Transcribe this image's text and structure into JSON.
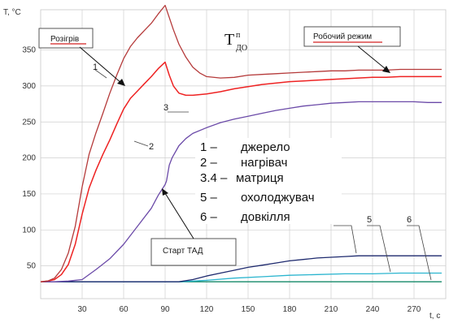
{
  "chart_data": {
    "type": "line",
    "xlabel": "t, с",
    "ylabel": "T, °С",
    "xlim": [
      0,
      300
    ],
    "ylim": [
      20,
      420
    ],
    "xticks": [
      "30",
      "60",
      "90",
      "120",
      "150",
      "180",
      "210",
      "240",
      "270"
    ],
    "yticks": [
      "50",
      "100",
      "150",
      "200",
      "250",
      "300",
      "350"
    ],
    "grid": true,
    "series": [
      {
        "name": "1",
        "color": "#b53a3a",
        "width": 1.3,
        "x": [
          0,
          5,
          10,
          15,
          20,
          25,
          30,
          35,
          40,
          45,
          50,
          55,
          60,
          65,
          70,
          75,
          80,
          85,
          90,
          93,
          96,
          100,
          105,
          110,
          115,
          120,
          130,
          140,
          150,
          160,
          170,
          180,
          190,
          200,
          210,
          220,
          230,
          240,
          250,
          260,
          270,
          280,
          290
        ],
        "y": [
          28,
          29,
          33,
          45,
          68,
          105,
          160,
          205,
          235,
          262,
          290,
          315,
          338,
          355,
          367,
          377,
          387,
          400,
          412,
          395,
          378,
          358,
          340,
          326,
          318,
          313,
          311,
          312,
          315,
          316,
          317,
          318,
          319,
          320,
          321,
          321,
          322,
          322,
          322,
          323,
          323,
          323,
          323
        ]
      },
      {
        "name": "2",
        "color": "#ee2222",
        "width": 1.5,
        "x": [
          0,
          5,
          10,
          15,
          20,
          25,
          30,
          35,
          40,
          45,
          50,
          55,
          60,
          65,
          70,
          75,
          80,
          85,
          90,
          93,
          96,
          100,
          105,
          110,
          120,
          130,
          140,
          150,
          160,
          170,
          180,
          190,
          200,
          210,
          220,
          230,
          240,
          250,
          260,
          270,
          280,
          290
        ],
        "y": [
          28,
          29,
          31,
          38,
          52,
          80,
          122,
          158,
          183,
          205,
          225,
          247,
          268,
          283,
          293,
          303,
          313,
          324,
          333,
          315,
          300,
          290,
          287,
          287,
          289,
          292,
          296,
          299,
          302,
          304,
          306,
          307,
          308,
          309,
          310,
          311,
          312,
          312,
          313,
          313,
          313,
          313
        ]
      },
      {
        "name": "3.4",
        "color": "#6b4aa8",
        "width": 1.3,
        "x": [
          0,
          10,
          20,
          30,
          40,
          50,
          60,
          70,
          80,
          85,
          90,
          91,
          93,
          95,
          100,
          105,
          110,
          120,
          130,
          140,
          150,
          160,
          170,
          180,
          190,
          200,
          210,
          220,
          230,
          240,
          250,
          260,
          270,
          280,
          290
        ],
        "y": [
          28,
          28,
          29,
          31,
          45,
          60,
          80,
          105,
          130,
          148,
          163,
          168,
          190,
          200,
          217,
          227,
          234,
          242,
          249,
          254,
          258,
          262,
          266,
          269,
          272,
          274,
          276,
          277,
          278,
          278,
          278,
          278,
          278,
          277,
          277
        ]
      },
      {
        "name": "4",
        "color": "#1e2a6e",
        "width": 1.3,
        "x": [
          0,
          90,
          100,
          110,
          120,
          130,
          140,
          150,
          160,
          170,
          180,
          190,
          200,
          210,
          220,
          230,
          240,
          250,
          260,
          270,
          280,
          290
        ],
        "y": [
          28,
          28,
          28,
          31,
          36,
          40,
          44,
          48,
          51,
          54,
          57,
          59,
          61,
          62,
          63,
          64,
          64,
          64,
          64,
          64,
          64,
          64
        ]
      },
      {
        "name": "5",
        "color": "#2bb5cf",
        "width": 1.3,
        "x": [
          0,
          100,
          120,
          140,
          160,
          180,
          200,
          220,
          240,
          260,
          270,
          280,
          290
        ],
        "y": [
          28,
          28,
          30,
          33,
          35,
          37,
          38,
          39,
          39,
          40,
          40,
          40,
          40
        ]
      },
      {
        "name": "6",
        "color": "#158a6a",
        "width": 1.4,
        "x": [
          0,
          290
        ],
        "y": [
          28,
          28
        ]
      }
    ],
    "curve_labels": [
      "1",
      "2",
      "3",
      "4",
      "5",
      "6"
    ],
    "legend_title": "Тдо",
    "legend": [
      {
        "num": "1 –",
        "text": "джерело"
      },
      {
        "num": "2 –",
        "text": "нагрівач"
      },
      {
        "num": "3.4 –",
        "text": "матриця"
      },
      {
        "num": "5 –",
        "text": "охолоджувач"
      },
      {
        "num": "6 –",
        "text": "довкілля"
      }
    ],
    "annotations": [
      "Розігрів",
      "Робочий режим",
      "Старт ТАД"
    ]
  }
}
